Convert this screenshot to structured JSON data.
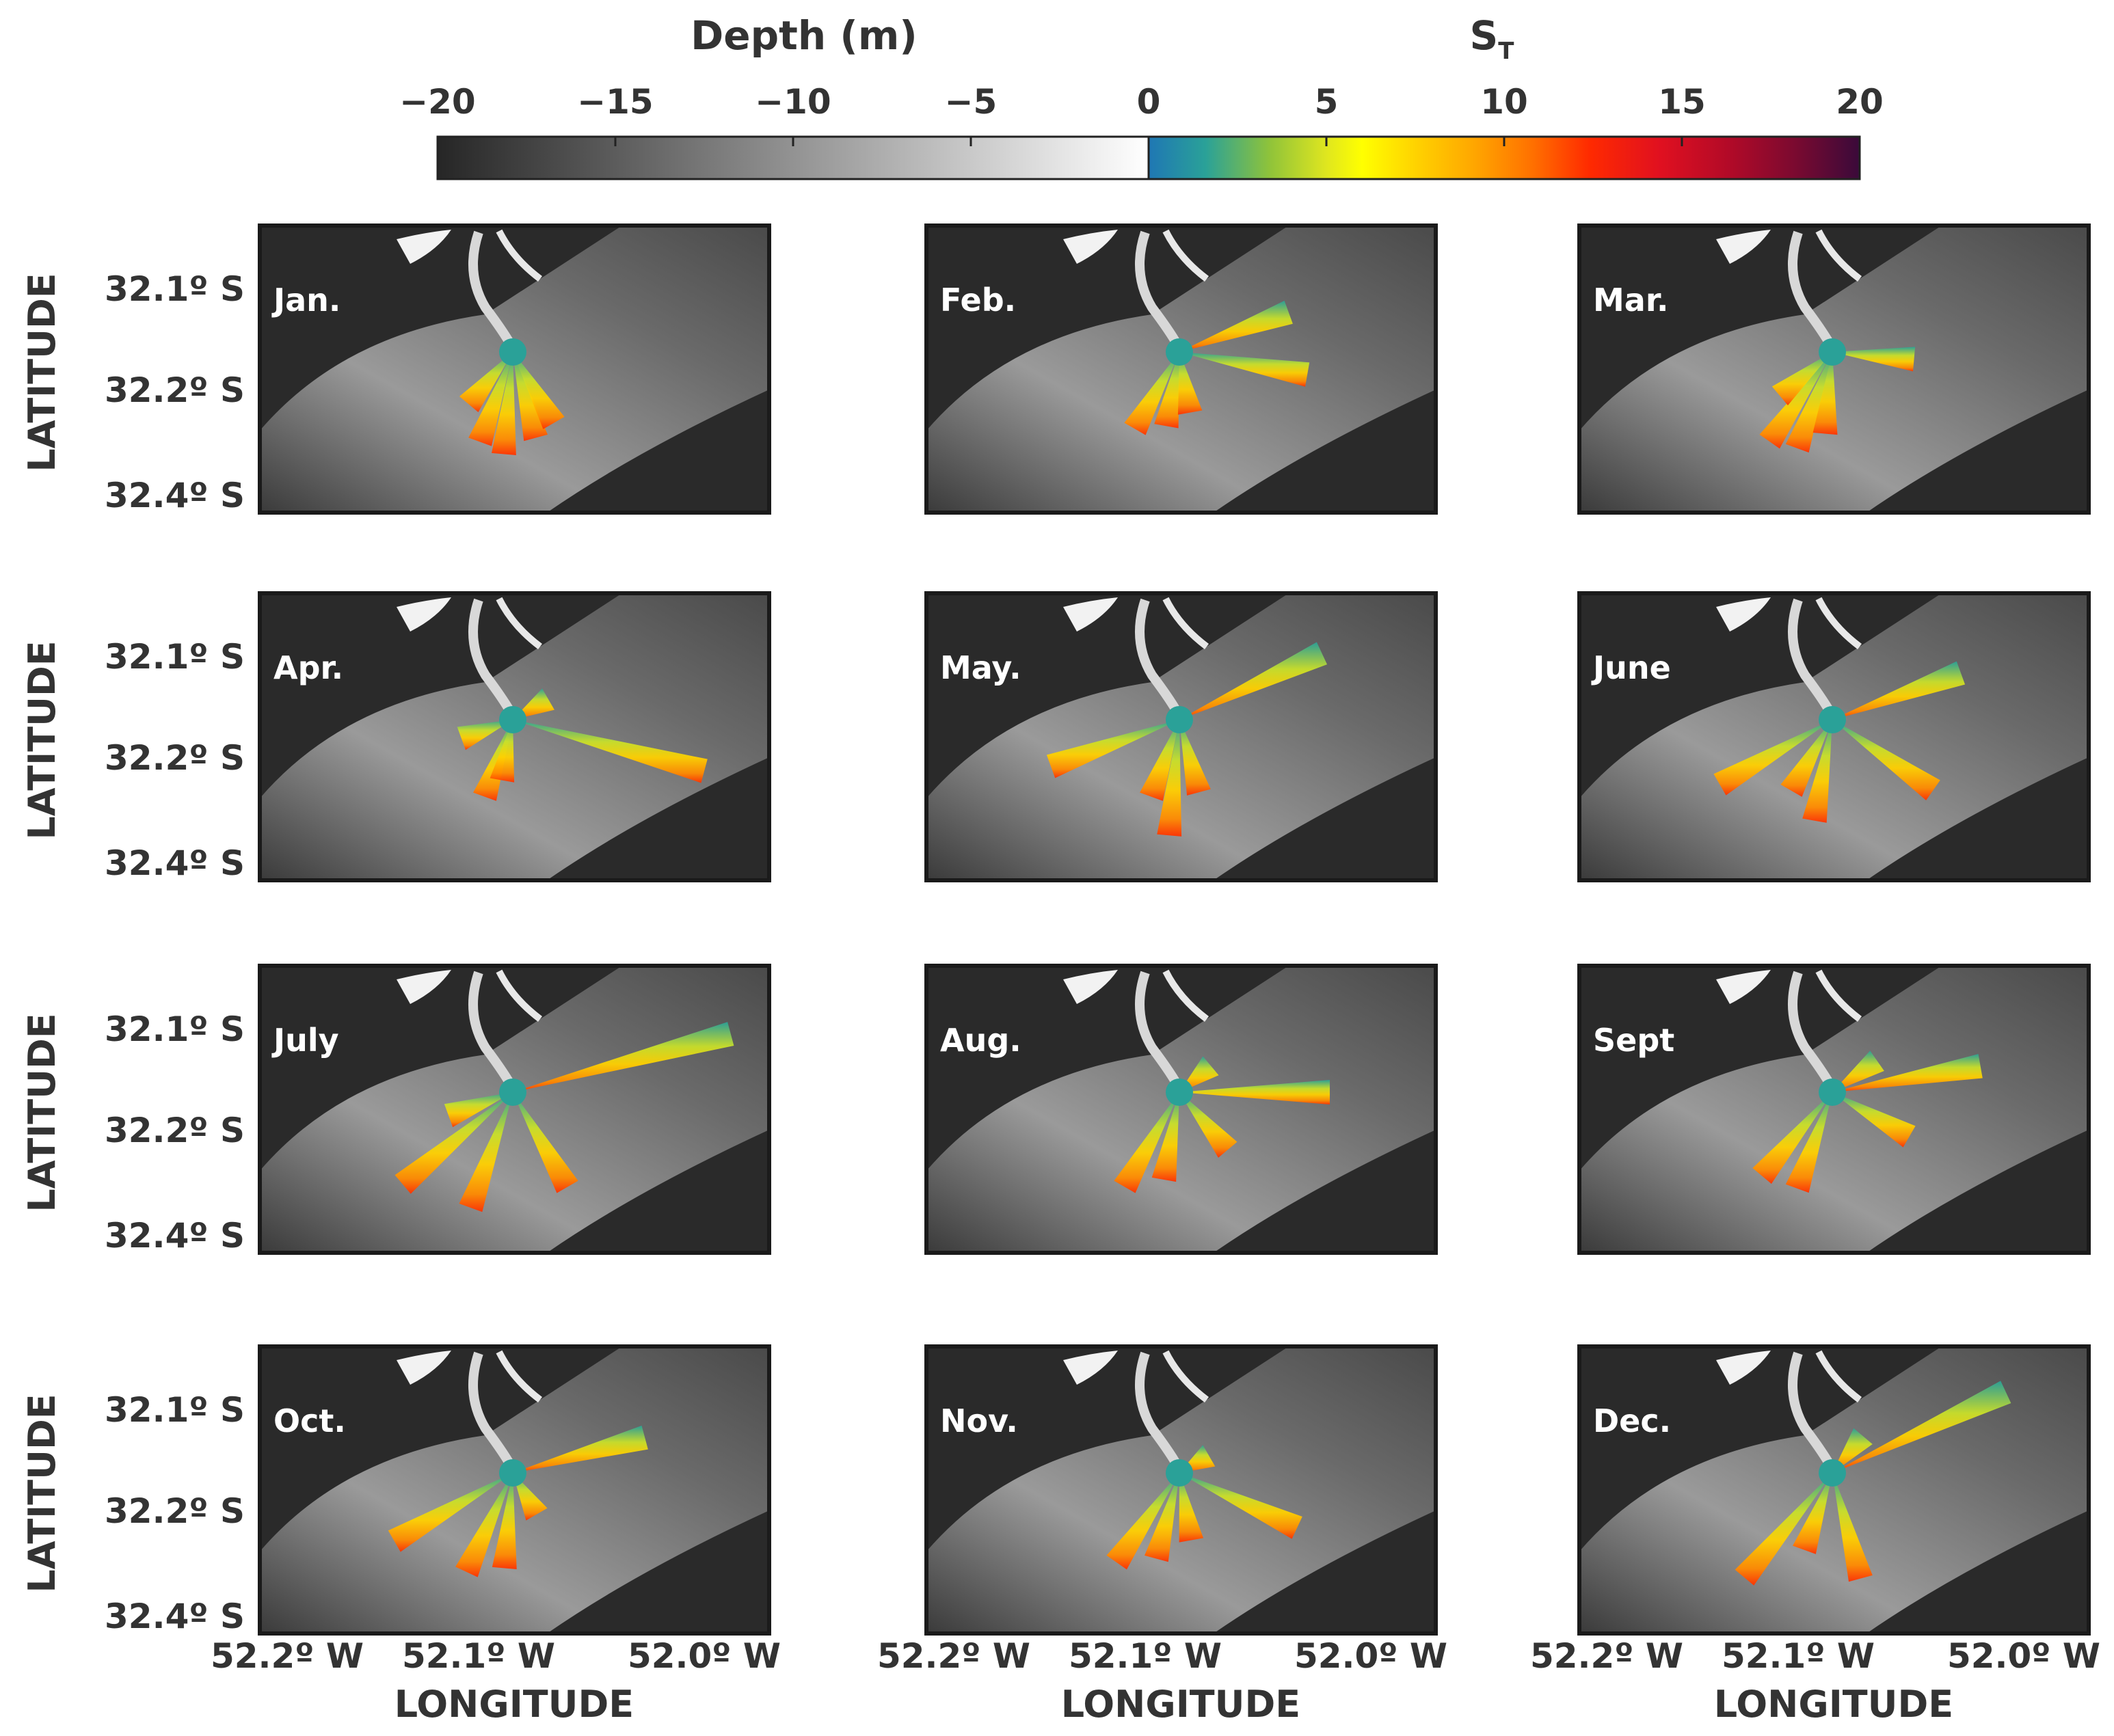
{
  "colorbars": {
    "depth": {
      "title": "Depth (m)",
      "ticks": [
        "−20",
        "−15",
        "−10",
        "−5",
        "0"
      ],
      "range": [
        -20,
        0
      ],
      "colors": [
        "#262626",
        "#ffffff"
      ]
    },
    "st": {
      "title_main": "S",
      "title_sub": "T",
      "ticks": [
        "5",
        "10",
        "15",
        "20"
      ],
      "range": [
        0,
        20
      ],
      "colors": [
        "#1f77b4",
        "#2aa198",
        "#8fc33a",
        "#dfe61f",
        "#ffff00",
        "#ffd000",
        "#ffa500",
        "#ff7000",
        "#ff2a00",
        "#e01020",
        "#b00a28",
        "#7a0a30",
        "#3a0a3a"
      ]
    }
  },
  "axes": {
    "ylabel": "LATITUDE",
    "xlabel": "LONGITUDE",
    "lat_ticks": [
      "32.1º S",
      "32.2º S",
      "32.4º S"
    ],
    "lon_ticks": [
      "52.2º W",
      "52.1º W",
      "52.0º W"
    ]
  },
  "panels": [
    {
      "label": "Jan."
    },
    {
      "label": "Feb."
    },
    {
      "label": "Mar."
    },
    {
      "label": "Apr."
    },
    {
      "label": "May."
    },
    {
      "label": "June"
    },
    {
      "label": "July"
    },
    {
      "label": "Aug."
    },
    {
      "label": "Sept"
    },
    {
      "label": "Oct."
    },
    {
      "label": "Nov."
    },
    {
      "label": "Dec."
    }
  ],
  "colors": {
    "land": "#2a2a2a",
    "border": "#1a1a1a",
    "label_text": "#ffffff",
    "axis_text": "#333333"
  }
}
